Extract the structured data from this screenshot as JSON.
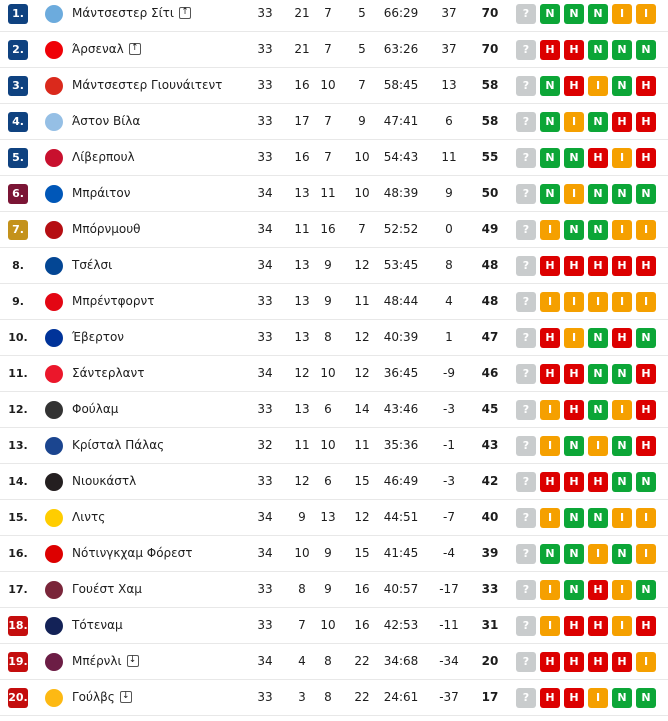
{
  "colors": {
    "blue": "#0f4280",
    "maroon": "#7b1535",
    "gold": "#c4921c",
    "red": "#c40d0d",
    "N": "#0ca637",
    "H": "#dc0000",
    "I": "#f5a000",
    "?": "#c9cccd"
  },
  "unknown_label": "?",
  "rows": [
    {
      "rank": "1.",
      "badge": "blue",
      "name": "Μάντσεστερ Σίτι",
      "arrow": "up",
      "p": "33",
      "w": "21",
      "d": "7",
      "l": "5",
      "g": "66:29",
      "gd": "37",
      "pts": "70",
      "form": [
        "N",
        "N",
        "N",
        "I",
        "I"
      ],
      "logo": "#6cabdd"
    },
    {
      "rank": "2.",
      "badge": "blue",
      "name": "Άρσεναλ",
      "arrow": "up",
      "p": "33",
      "w": "21",
      "d": "7",
      "l": "5",
      "g": "63:26",
      "gd": "37",
      "pts": "70",
      "form": [
        "H",
        "H",
        "N",
        "N",
        "N"
      ],
      "logo": "#ef0107"
    },
    {
      "rank": "3.",
      "badge": "blue",
      "name": "Μάντσεστερ Γιουνάιτεντ",
      "p": "33",
      "w": "16",
      "d": "10",
      "l": "7",
      "g": "58:45",
      "gd": "13",
      "pts": "58",
      "form": [
        "N",
        "H",
        "I",
        "N",
        "H"
      ],
      "logo": "#da291c"
    },
    {
      "rank": "4.",
      "badge": "blue",
      "name": "Άστον Βίλα",
      "p": "33",
      "w": "17",
      "d": "7",
      "l": "9",
      "g": "47:41",
      "gd": "6",
      "pts": "58",
      "form": [
        "N",
        "I",
        "N",
        "H",
        "H"
      ],
      "logo": "#95bfe5"
    },
    {
      "rank": "5.",
      "badge": "blue",
      "name": "Λίβερπουλ",
      "p": "33",
      "w": "16",
      "d": "7",
      "l": "10",
      "g": "54:43",
      "gd": "11",
      "pts": "55",
      "form": [
        "N",
        "N",
        "H",
        "I",
        "H"
      ],
      "logo": "#c8102e"
    },
    {
      "rank": "6.",
      "badge": "maroon",
      "name": "Μπράιτον",
      "p": "34",
      "w": "13",
      "d": "11",
      "l": "10",
      "g": "48:39",
      "gd": "9",
      "pts": "50",
      "form": [
        "N",
        "I",
        "N",
        "N",
        "N"
      ],
      "logo": "#0057b8"
    },
    {
      "rank": "7.",
      "badge": "gold",
      "name": "Μπόρνμουθ",
      "p": "34",
      "w": "11",
      "d": "16",
      "l": "7",
      "g": "52:52",
      "gd": "0",
      "pts": "49",
      "form": [
        "I",
        "N",
        "N",
        "I",
        "I"
      ],
      "logo": "#b50e12"
    },
    {
      "rank": "8.",
      "name": "Τσέλσι",
      "p": "34",
      "w": "13",
      "d": "9",
      "l": "12",
      "g": "53:45",
      "gd": "8",
      "pts": "48",
      "form": [
        "H",
        "H",
        "H",
        "H",
        "H"
      ],
      "logo": "#034694"
    },
    {
      "rank": "9.",
      "name": "Μπρέντφορντ",
      "p": "33",
      "w": "13",
      "d": "9",
      "l": "11",
      "g": "48:44",
      "gd": "4",
      "pts": "48",
      "form": [
        "I",
        "I",
        "I",
        "I",
        "I"
      ],
      "logo": "#e30613"
    },
    {
      "rank": "10.",
      "name": "Έβερτον",
      "p": "33",
      "w": "13",
      "d": "8",
      "l": "12",
      "g": "40:39",
      "gd": "1",
      "pts": "47",
      "form": [
        "H",
        "I",
        "N",
        "H",
        "N"
      ],
      "logo": "#003399"
    },
    {
      "rank": "11.",
      "name": "Σάντερλαντ",
      "p": "34",
      "w": "12",
      "d": "10",
      "l": "12",
      "g": "36:45",
      "gd": "-9",
      "pts": "46",
      "form": [
        "H",
        "H",
        "N",
        "N",
        "H"
      ],
      "logo": "#eb172b"
    },
    {
      "rank": "12.",
      "name": "Φούλαμ",
      "p": "33",
      "w": "13",
      "d": "6",
      "l": "14",
      "g": "43:46",
      "gd": "-3",
      "pts": "45",
      "form": [
        "I",
        "H",
        "N",
        "I",
        "H"
      ],
      "logo": "#333333"
    },
    {
      "rank": "13.",
      "name": "Κρίσταλ Πάλας",
      "p": "32",
      "w": "11",
      "d": "10",
      "l": "11",
      "g": "35:36",
      "gd": "-1",
      "pts": "43",
      "form": [
        "I",
        "N",
        "I",
        "N",
        "H"
      ],
      "logo": "#1b458f"
    },
    {
      "rank": "14.",
      "name": "Νιουκάστλ",
      "p": "33",
      "w": "12",
      "d": "6",
      "l": "15",
      "g": "46:49",
      "gd": "-3",
      "pts": "42",
      "form": [
        "H",
        "H",
        "H",
        "N",
        "N"
      ],
      "logo": "#241f20"
    },
    {
      "rank": "15.",
      "name": "Λιντς",
      "p": "34",
      "w": "9",
      "d": "13",
      "l": "12",
      "g": "44:51",
      "gd": "-7",
      "pts": "40",
      "form": [
        "I",
        "N",
        "N",
        "I",
        "I"
      ],
      "logo": "#ffcd00"
    },
    {
      "rank": "16.",
      "name": "Νότινγκχαμ Φόρεστ",
      "p": "34",
      "w": "10",
      "d": "9",
      "l": "15",
      "g": "41:45",
      "gd": "-4",
      "pts": "39",
      "form": [
        "N",
        "N",
        "I",
        "N",
        "I"
      ],
      "logo": "#dd0000"
    },
    {
      "rank": "17.",
      "name": "Γουέστ Χαμ",
      "p": "33",
      "w": "8",
      "d": "9",
      "l": "16",
      "g": "40:57",
      "gd": "-17",
      "pts": "33",
      "form": [
        "I",
        "N",
        "H",
        "I",
        "N"
      ],
      "logo": "#7a263a"
    },
    {
      "rank": "18.",
      "badge": "red",
      "name": "Τότεναμ",
      "p": "33",
      "w": "7",
      "d": "10",
      "l": "16",
      "g": "42:53",
      "gd": "-11",
      "pts": "31",
      "form": [
        "I",
        "H",
        "H",
        "I",
        "H"
      ],
      "logo": "#132257"
    },
    {
      "rank": "19.",
      "badge": "red",
      "name": "Μπέρνλι",
      "arrow": "down",
      "p": "34",
      "w": "4",
      "d": "8",
      "l": "22",
      "g": "34:68",
      "gd": "-34",
      "pts": "20",
      "form": [
        "H",
        "H",
        "H",
        "H",
        "I"
      ],
      "logo": "#6c1d45"
    },
    {
      "rank": "20.",
      "badge": "red",
      "name": "Γούλβς",
      "arrow": "down",
      "p": "33",
      "w": "3",
      "d": "8",
      "l": "22",
      "g": "24:61",
      "gd": "-37",
      "pts": "17",
      "form": [
        "H",
        "H",
        "I",
        "N",
        "N"
      ],
      "logo": "#fdb913"
    }
  ]
}
